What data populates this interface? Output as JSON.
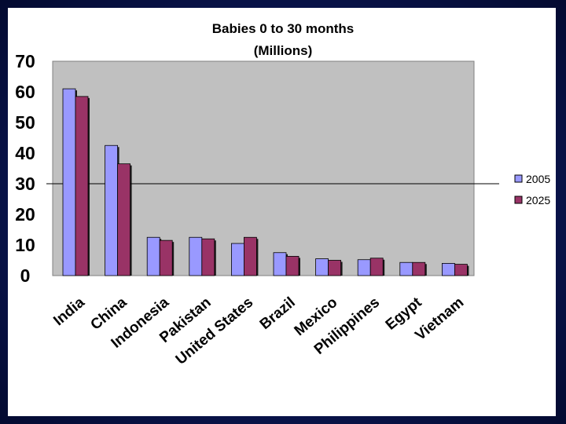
{
  "chart_data": {
    "type": "bar",
    "title_lines": [
      "Babies 0 to 30 months",
      "(Millions)"
    ],
    "categories": [
      "India",
      "China",
      "Indonesia",
      "Pakistan",
      "United States",
      "Brazil",
      "Mexico",
      "Philippines",
      "Egypt",
      "Vietnam"
    ],
    "series": [
      {
        "name": "2005",
        "color": "#9999ff",
        "values": [
          61,
          42.5,
          12.5,
          12.5,
          10.5,
          7.5,
          5.5,
          5.2,
          4.3,
          4
        ]
      },
      {
        "name": "2025",
        "color": "#993366",
        "values": [
          58.5,
          36.5,
          11.5,
          12,
          12.5,
          6.3,
          5,
          5.7,
          4.3,
          3.7
        ]
      }
    ],
    "xlabel": "",
    "ylabel": "",
    "ylim": [
      0,
      70
    ],
    "yticks": [
      "0",
      "10",
      "20",
      "30",
      "40",
      "50",
      "60",
      "70"
    ],
    "plot_background": "#c0c0c0",
    "reference_line": 30,
    "legend_position": "right"
  }
}
